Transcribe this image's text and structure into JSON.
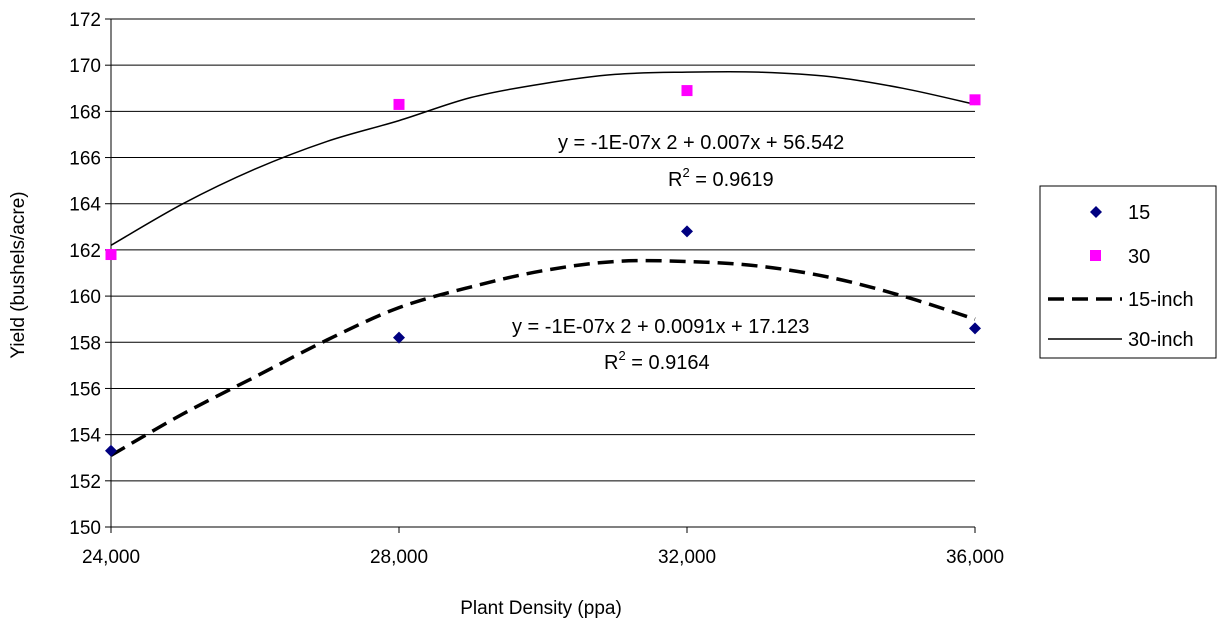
{
  "chart_data": {
    "type": "scatter",
    "xlabel": "Plant Density (ppa)",
    "ylabel": "Yield (bushels/acre)",
    "xlim": [
      24000,
      36000
    ],
    "ylim": [
      150,
      172
    ],
    "x_ticks": [
      "24,000",
      "28,000",
      "32,000",
      "36,000"
    ],
    "y_ticks": [
      "150",
      "152",
      "154",
      "156",
      "158",
      "160",
      "162",
      "164",
      "166",
      "168",
      "170",
      "172"
    ],
    "grid": "horizontal",
    "legend_position": "right",
    "series": [
      {
        "name": "15",
        "marker": "diamond",
        "color": "#000080",
        "x": [
          24000,
          28000,
          32000,
          36000
        ],
        "y": [
          153.3,
          158.2,
          162.8,
          158.6
        ]
      },
      {
        "name": "30",
        "marker": "square",
        "color": "#ff00ff",
        "x": [
          24000,
          28000,
          32000,
          36000
        ],
        "y": [
          161.8,
          168.3,
          168.9,
          168.5
        ]
      }
    ],
    "trendlines": [
      {
        "name": "15-inch",
        "style": "dashed",
        "color": "#000000",
        "x": [
          24000,
          25000,
          26000,
          27000,
          28000,
          29000,
          30000,
          31000,
          32000,
          33000,
          34000,
          35000,
          36000
        ],
        "y": [
          153.1,
          154.9,
          156.5,
          158.1,
          159.5,
          160.4,
          161.1,
          161.5,
          161.5,
          161.3,
          160.8,
          160.0,
          159.0
        ],
        "equation": "y = -1E-07x  2 + 0.0091x + 17.123",
        "r2_label": "R",
        "r2_exp": "2",
        "r2_value": " = 0.9164"
      },
      {
        "name": "30-inch",
        "style": "solid",
        "color": "#000000",
        "x": [
          24000,
          25000,
          26000,
          27000,
          28000,
          29000,
          30000,
          31000,
          32000,
          33000,
          34000,
          35000,
          36000
        ],
        "y": [
          162.2,
          164.0,
          165.5,
          166.7,
          167.6,
          168.6,
          169.2,
          169.6,
          169.7,
          169.7,
          169.5,
          169.0,
          168.3
        ],
        "equation": "y = -1E-07x  2 + 0.007x + 56.542",
        "r2_label": "R",
        "r2_exp": "2",
        "r2_value": " = 0.9619"
      }
    ]
  }
}
